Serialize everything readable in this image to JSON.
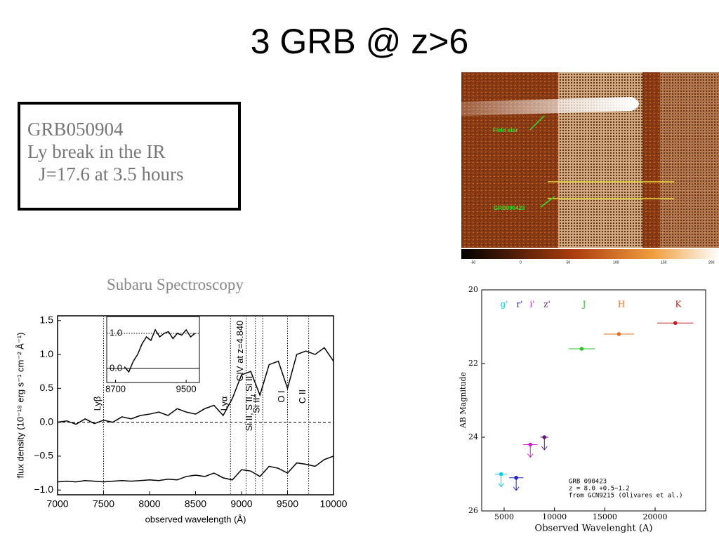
{
  "title": "3 GRB @ z>6",
  "box": {
    "lines": [
      "GRB050904",
      "Ly break in the IR",
      "J=17.6 at 3.5 hours"
    ]
  },
  "caption": "Subaru Spectroscopy",
  "image": {
    "labels": [
      "Field star",
      "GRB090423"
    ],
    "colorbar_ticks": [
      -50,
      0,
      50,
      100,
      150,
      200
    ]
  },
  "chart_data": [
    {
      "type": "line",
      "xlabel": "observed wavelength (Å)",
      "ylabel": "flux density (10⁻¹⁸ erg s⁻¹ cm⁻² Å⁻¹)",
      "xlim": [
        7000,
        10000
      ],
      "ylim": [
        -1.07,
        1.57
      ],
      "xticks": [
        7000,
        7500,
        8000,
        8500,
        9000,
        9500,
        10000
      ],
      "yticks": [
        {
          "value": -1,
          "label": "−1.0"
        },
        {
          "value": -0.5,
          "label": "−0.5"
        },
        {
          "value": 0,
          "label": "0.0"
        },
        {
          "value": 0.5,
          "label": "0.5"
        },
        {
          "value": 1,
          "label": "1.0"
        },
        {
          "value": 1.5,
          "label": "1.5"
        }
      ],
      "hline": 0,
      "x": [
        7000,
        7100,
        7200,
        7300,
        7400,
        7500,
        7600,
        7700,
        7800,
        7900,
        8000,
        8100,
        8200,
        8300,
        8400,
        8500,
        8600,
        8700,
        8800,
        8900,
        9000,
        9100,
        9200,
        9300,
        9400,
        9500,
        9600,
        9700,
        9800,
        9900,
        10000
      ],
      "series": [
        {
          "name": "flux",
          "color": "#000",
          "values": [
            0.0,
            0.02,
            -0.03,
            0.05,
            -0.02,
            0.03,
            0.0,
            0.08,
            0.05,
            0.1,
            0.12,
            0.15,
            0.1,
            0.2,
            0.15,
            0.12,
            0.2,
            0.25,
            0.1,
            0.35,
            0.7,
            0.75,
            0.4,
            0.85,
            0.9,
            0.5,
            1.0,
            1.05,
            1.0,
            1.1,
            0.9
          ]
        },
        {
          "name": "error",
          "color": "#000",
          "values": [
            -0.88,
            -0.87,
            -0.88,
            -0.86,
            -0.87,
            -0.88,
            -0.87,
            -0.86,
            -0.87,
            -0.86,
            -0.85,
            -0.86,
            -0.84,
            -0.85,
            -0.8,
            -0.78,
            -0.8,
            -0.75,
            -0.82,
            -0.85,
            -0.7,
            -0.72,
            -0.8,
            -0.65,
            -0.68,
            -0.75,
            -0.6,
            -0.62,
            -0.65,
            -0.55,
            -0.5
          ]
        }
      ],
      "annotations": [
        {
          "text": "Lyβ",
          "x": 7500
        },
        {
          "text": "Lyα",
          "x": 8880
        },
        {
          "text": "CIV at z=4.840",
          "x": 9050
        },
        {
          "text": "Si II, S II, Si II",
          "x": 9150
        },
        {
          "text": "Si II*",
          "x": 9230
        },
        {
          "text": "O I",
          "x": 9500
        },
        {
          "text": "C II",
          "x": 9730
        }
      ],
      "inset": {
        "xlim": [
          8600,
          9650
        ],
        "ylim": [
          -0.4,
          1.48
        ],
        "xticks": [
          8700,
          9500
        ],
        "yticks": [
          {
            "value": 0,
            "label": "0.0"
          },
          {
            "value": 1,
            "label": "1.0"
          }
        ],
        "x": [
          8600,
          8650,
          8700,
          8750,
          8800,
          8850,
          8900,
          8950,
          9000,
          9050,
          9100,
          9150,
          9200,
          9250,
          9300,
          9350,
          9400,
          9450,
          9500,
          9550,
          9600
        ],
        "values": [
          null,
          null,
          null,
          null,
          0.05,
          -0.1,
          0.2,
          0.4,
          0.7,
          0.9,
          0.8,
          1.1,
          0.9,
          1.0,
          1.05,
          0.85,
          1.0,
          0.95,
          1.1,
          0.9,
          1.0
        ]
      }
    },
    {
      "type": "scatter",
      "xlabel": "Observed Wavelenght (A)",
      "ylabel": "AB Magnitude",
      "xlim": [
        2770,
        25020
      ],
      "ylim": [
        26,
        20
      ],
      "xticks": [
        5000,
        10000,
        15000,
        20000
      ],
      "yticks": [
        20,
        22,
        24,
        26
      ],
      "series": [
        {
          "name": "g'",
          "color": "#00d0e0",
          "x": 4700,
          "values": 25.0,
          "xerr": 600,
          "upper_limit": true
        },
        {
          "name": "r'",
          "color": "#2020c0",
          "x": 6200,
          "values": 25.1,
          "xerr": 700,
          "upper_limit": true
        },
        {
          "name": "i'",
          "color": "#d020d0",
          "x": 7600,
          "values": 24.2,
          "xerr": 700,
          "upper_limit": true
        },
        {
          "name": "z'",
          "color": "#601880",
          "x": 9000,
          "values": 24.0,
          "xerr": 400,
          "upper_limit": true
        },
        {
          "name": "J",
          "color": "#30c030",
          "x": 12700,
          "values": 21.6,
          "xerr": 1300,
          "upper_limit": false
        },
        {
          "name": "H",
          "color": "#e07020",
          "x": 16400,
          "values": 21.2,
          "xerr": 1500,
          "upper_limit": false
        },
        {
          "name": "K",
          "color": "#c02020",
          "x": 22000,
          "values": 20.9,
          "xerr": 1800,
          "upper_limit": false
        }
      ],
      "annotation": [
        "GRB 090423",
        "z = 8.0 +0.5−1.2",
        "from GCN9215 (Olivares et al.)"
      ]
    }
  ]
}
